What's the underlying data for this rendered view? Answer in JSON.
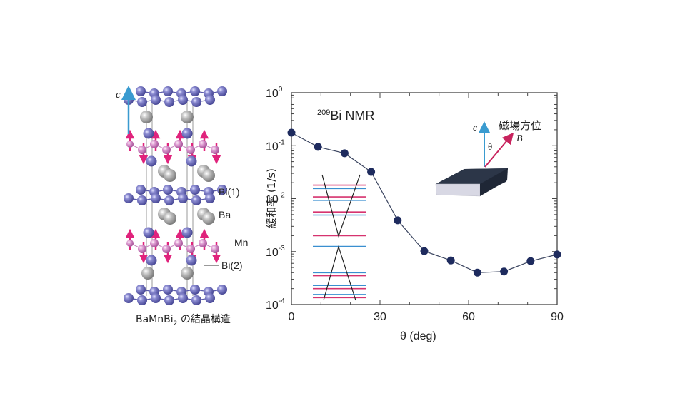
{
  "structure_panel": {
    "c_axis_label": "c",
    "labels": {
      "bi1": "Bi(1)",
      "ba": "Ba",
      "mn": "Mn",
      "bi2": "Bi(2)"
    },
    "caption_formula": "BaMnBi",
    "caption_subscript": "2",
    "caption_suffix": " の結晶構造",
    "colors": {
      "bi": "#6b6bb8",
      "ba": "#a9a9a9",
      "mn": "#d58ac7",
      "spin_arrow": "#e0237c",
      "c_arrow": "#3a9bd0"
    }
  },
  "chart_data": {
    "type": "line",
    "title": "209Bi NMR",
    "title_superscript": "209",
    "title_main": "Bi NMR",
    "xlabel": "θ (deg)",
    "ylabel": "緩和率 (1/s)",
    "xlim": [
      0,
      90
    ],
    "ylim": [
      0.0001,
      1
    ],
    "yscale": "log",
    "xticks": [
      0,
      30,
      60,
      90
    ],
    "xtick_labels": [
      "0",
      "30",
      "60",
      "90"
    ],
    "yticks": [
      {
        "base": "10",
        "exp": "0"
      },
      {
        "base": "10",
        "exp": "-1"
      },
      {
        "base": "10",
        "exp": "-2"
      },
      {
        "base": "10",
        "exp": "-3"
      },
      {
        "base": "10",
        "exp": "-4"
      }
    ],
    "grid": false,
    "series": [
      {
        "name": "209Bi NMR relaxation rate",
        "color": "#1e2b5e",
        "x": [
          0,
          9,
          18,
          27,
          36,
          45,
          54,
          63,
          72,
          81,
          90
        ],
        "y": [
          0.176,
          0.095,
          0.072,
          0.032,
          0.0039,
          0.00102,
          0.00068,
          0.0004,
          0.00042,
          0.00066,
          0.00088
        ]
      }
    ],
    "inset_levels": {
      "description": "Landau-level schematic with Dirac cone",
      "levels": [
        {
          "y": 0.018,
          "color": "pink"
        },
        {
          "y": 0.0155,
          "color": "blue"
        },
        {
          "y": 0.0108,
          "color": "pink"
        },
        {
          "y": 0.0093,
          "color": "blue"
        },
        {
          "y": 0.0056,
          "color": "pink"
        },
        {
          "y": 0.0049,
          "color": "blue"
        },
        {
          "y": 0.002,
          "color": "pink"
        },
        {
          "y": 0.00125,
          "color": "blue"
        },
        {
          "y": 0.0004,
          "color": "blue"
        },
        {
          "y": 0.00035,
          "color": "pink"
        },
        {
          "y": 0.00023,
          "color": "blue"
        },
        {
          "y": 0.0002,
          "color": "pink"
        },
        {
          "y": 0.000155,
          "color": "blue"
        },
        {
          "y": 0.000135,
          "color": "pink"
        }
      ],
      "colors": {
        "pink": "#d6336f",
        "blue": "#3a8fd0"
      }
    },
    "field_inset": {
      "title": "磁場方位",
      "c_label": "c",
      "b_label": "B",
      "theta_label": "θ",
      "colors": {
        "c_arrow": "#3a9bd0",
        "b_arrow": "#c8245e",
        "slab_top": "#2a3345",
        "slab_side": "#d8d8e4"
      }
    }
  }
}
